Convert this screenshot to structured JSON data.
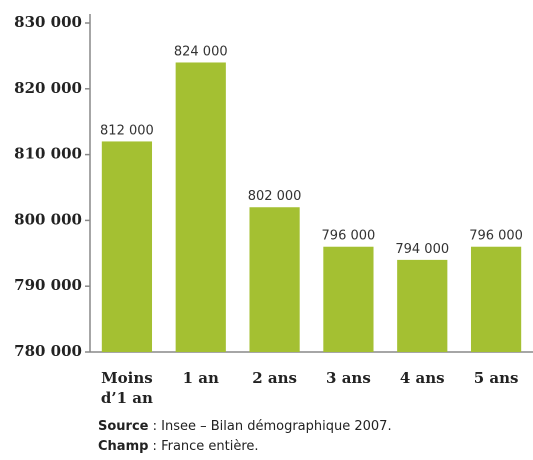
{
  "chart_data": {
    "type": "bar",
    "categories": [
      "Moins d’1 an",
      "1 an",
      "2 ans",
      "3 ans",
      "4 ans",
      "5 ans"
    ],
    "values": [
      812000,
      824000,
      802000,
      796000,
      794000,
      796000
    ],
    "value_labels": [
      "812 000",
      "824 000",
      "802 000",
      "796 000",
      "794 000",
      "796 000"
    ],
    "color": "#a4c032",
    "ylim": [
      780000,
      830000
    ],
    "yticks": [
      {
        "value": 780000,
        "label": "780 000"
      },
      {
        "value": 790000,
        "label": "790 000"
      },
      {
        "value": 800000,
        "label": "800 000"
      },
      {
        "value": 810000,
        "label": "810 000"
      },
      {
        "value": 820000,
        "label": "820 000"
      },
      {
        "value": 830000,
        "label": "830 000"
      }
    ],
    "grid": false,
    "notes": [
      {
        "label": "Source",
        "text": " : Insee – Bilan démographique 2007."
      },
      {
        "label": "Champ",
        "text": " : France entière."
      }
    ]
  }
}
